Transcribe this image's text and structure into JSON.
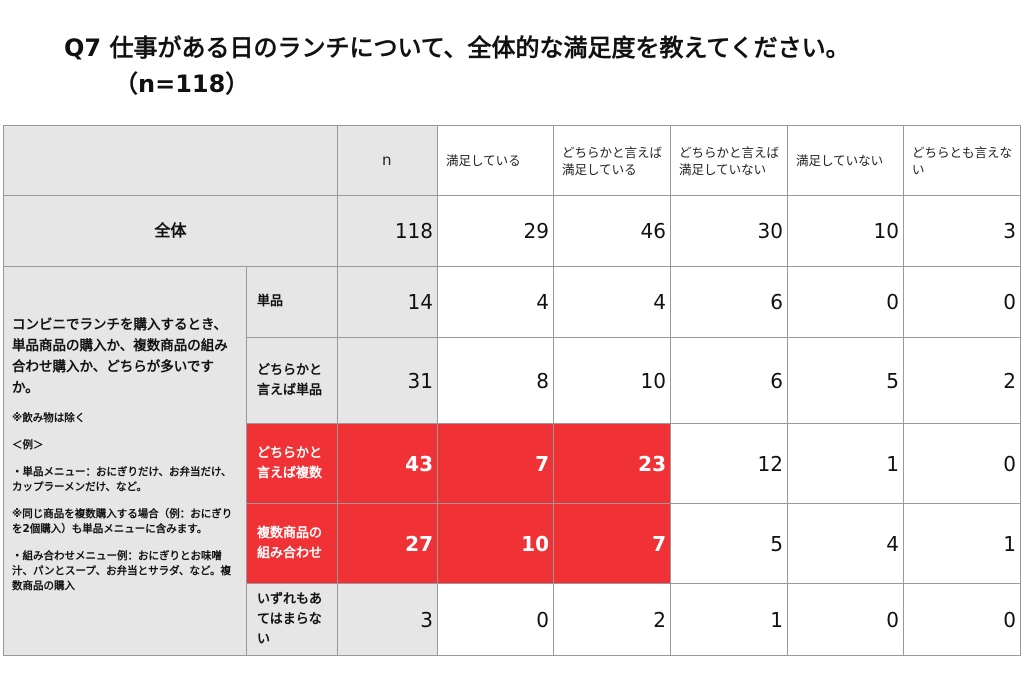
{
  "title": {
    "line1": "Q7  仕事がある日のランチについて、全体的な満足度を教えてください。",
    "line2": "（n=118）"
  },
  "table": {
    "highlight_color": "#f03236",
    "columns": [
      "n",
      "満足している",
      "どちらかと言えば満足している",
      "どちらかと言えば満足していない",
      "満足していない",
      "どちらとも言えない"
    ],
    "total": {
      "label": "全体",
      "values": [
        118,
        29,
        46,
        30,
        10,
        3
      ]
    },
    "group": {
      "label": [
        "コンビニでランチを購入するとき、単品商品の購入か、複数商品の組み合わせ購入か、どちらが多いですか。",
        "※飲み物は除く",
        "＜例＞",
        "・単品メニュー：おにぎりだけ、お弁当だけ、カップラーメンだけ、など。",
        "※同じ商品を複数購入する場合（例：おにぎりを2個購入）も単品メニューに含みます。",
        "・組み合わせメニュー例：おにぎりとお味噌汁、パンとスープ、お弁当とサラダ、など。複数商品の購入"
      ]
    },
    "rows": [
      {
        "label": "単品",
        "values": [
          14,
          4,
          4,
          6,
          0,
          0
        ],
        "highlighted_columns": []
      },
      {
        "label": "どちらかと言えば単品",
        "values": [
          31,
          8,
          10,
          6,
          5,
          2
        ],
        "highlighted_columns": []
      },
      {
        "label": "どちらかと言えば複数",
        "values": [
          43,
          7,
          23,
          12,
          1,
          0
        ],
        "highlighted_columns": [
          0,
          1,
          2
        ]
      },
      {
        "label": "複数商品の組み合わせ",
        "values": [
          27,
          10,
          7,
          5,
          4,
          1
        ],
        "highlighted_columns": [
          0,
          1,
          2
        ]
      },
      {
        "label": "いずれもあてはまらない",
        "values": [
          3,
          0,
          2,
          1,
          0,
          0
        ],
        "highlighted_columns": []
      }
    ]
  }
}
